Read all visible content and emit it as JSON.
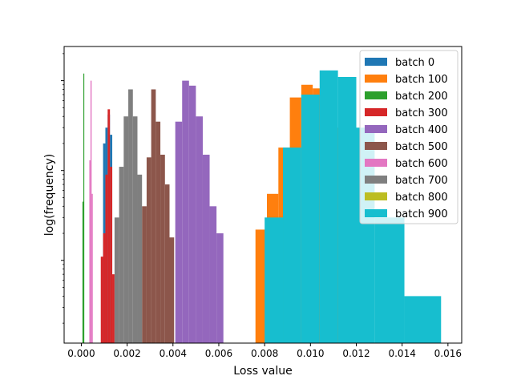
{
  "chart_data": {
    "type": "histogram",
    "xlabel": "Loss value",
    "ylabel": "log(frequency)",
    "y_scale": "log",
    "xlim": [
      -0.00075,
      0.0166
    ],
    "x_ticks": [
      "0.000",
      "0.002",
      "0.004",
      "0.006",
      "0.008",
      "0.010",
      "0.012",
      "0.014",
      "0.016"
    ],
    "legend_position": "upper right",
    "series": [
      {
        "name": "batch 0",
        "color": "#1f77b4",
        "bins": [
          [
            0.00095,
            0.00105,
            200
          ],
          [
            0.00105,
            0.00115,
            300
          ],
          [
            0.00115,
            0.00125,
            420
          ],
          [
            0.00125,
            0.00135,
            250
          ]
        ]
      },
      {
        "name": "batch 100",
        "color": "#ff7f0e",
        "bins": [
          [
            0.0076,
            0.0081,
            22
          ],
          [
            0.0081,
            0.0086,
            55
          ],
          [
            0.0086,
            0.0091,
            180
          ],
          [
            0.0091,
            0.0096,
            650
          ],
          [
            0.0096,
            0.0101,
            900
          ],
          [
            0.0101,
            0.0106,
            820
          ],
          [
            0.0106,
            0.0111,
            400
          ],
          [
            0.0111,
            0.0116,
            300
          ],
          [
            0.0116,
            0.0121,
            180
          ],
          [
            0.0121,
            0.0126,
            110
          ]
        ]
      },
      {
        "name": "batch 200",
        "color": "#2ca02c",
        "bins": [
          [
            5e-05,
            9e-05,
            45
          ],
          [
            9e-05,
            0.00013,
            1200
          ]
        ]
      },
      {
        "name": "batch 300",
        "color": "#d62728",
        "bins": [
          [
            0.00085,
            0.00095,
            11
          ],
          [
            0.00095,
            0.00105,
            20
          ],
          [
            0.00105,
            0.00115,
            90
          ],
          [
            0.00115,
            0.00125,
            480
          ],
          [
            0.00125,
            0.00135,
            110
          ],
          [
            0.00135,
            0.00145,
            7
          ]
        ]
      },
      {
        "name": "batch 400",
        "color": "#9467bd",
        "bins": [
          [
            0.0041,
            0.0044,
            350
          ],
          [
            0.0044,
            0.0047,
            1000
          ],
          [
            0.0047,
            0.005,
            880
          ],
          [
            0.005,
            0.0053,
            400
          ],
          [
            0.0053,
            0.0056,
            150
          ],
          [
            0.0056,
            0.0059,
            40
          ],
          [
            0.0059,
            0.0062,
            20
          ]
        ]
      },
      {
        "name": "batch 500",
        "color": "#8c564b",
        "bins": [
          [
            0.00265,
            0.00285,
            40
          ],
          [
            0.00285,
            0.00305,
            140
          ],
          [
            0.00305,
            0.00325,
            800
          ],
          [
            0.00325,
            0.00345,
            350
          ],
          [
            0.00345,
            0.00365,
            150
          ],
          [
            0.00365,
            0.00385,
            70
          ],
          [
            0.00385,
            0.00405,
            18
          ]
        ]
      },
      {
        "name": "batch 600",
        "color": "#e377c2",
        "bins": [
          [
            0.00035,
            0.0004,
            130
          ],
          [
            0.0004,
            0.00045,
            1000
          ],
          [
            0.00045,
            0.0005,
            55
          ]
        ]
      },
      {
        "name": "batch 700",
        "color": "#7f7f7f",
        "bins": [
          [
            0.00145,
            0.00165,
            30
          ],
          [
            0.00165,
            0.00185,
            110
          ],
          [
            0.00185,
            0.00205,
            400
          ],
          [
            0.00205,
            0.00225,
            800
          ],
          [
            0.00225,
            0.00245,
            400
          ],
          [
            0.00245,
            0.00265,
            90
          ]
        ]
      },
      {
        "name": "batch 800",
        "color": "#bcbd22",
        "bins": []
      },
      {
        "name": "batch 900",
        "color": "#17becf",
        "bins": [
          [
            0.008,
            0.0088,
            30
          ],
          [
            0.0088,
            0.0096,
            180
          ],
          [
            0.0096,
            0.0104,
            700
          ],
          [
            0.0104,
            0.0112,
            1300
          ],
          [
            0.0112,
            0.012,
            1100
          ],
          [
            0.012,
            0.0128,
            300
          ],
          [
            0.0128,
            0.0141,
            30
          ],
          [
            0.0141,
            0.0157,
            4
          ]
        ]
      }
    ]
  }
}
